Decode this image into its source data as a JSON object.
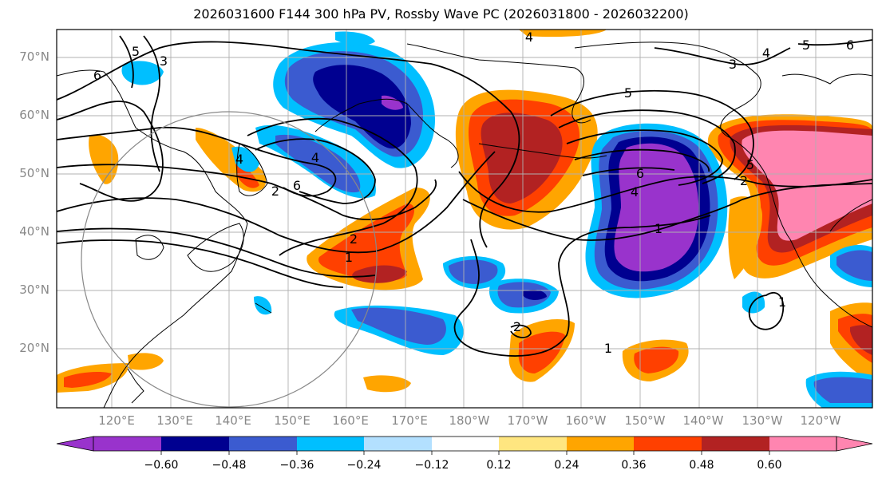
{
  "title": "2026031600 F144 300 hPa PV, Rossby Wave PC (2026031800 - 2026032200)",
  "latitude_labels": [
    "70°N",
    "60°N",
    "50°N",
    "40°N",
    "30°N",
    "20°N"
  ],
  "longitude_labels": [
    "120°E",
    "130°E",
    "140°E",
    "150°E",
    "160°E",
    "170°E",
    "180°W",
    "170°W",
    "160°W",
    "150°W",
    "140°W",
    "130°W",
    "120°W"
  ],
  "colorbar": {
    "ticks": [
      "−0.60",
      "−0.48",
      "−0.36",
      "−0.24",
      "−0.12",
      "0.12",
      "0.24",
      "0.36",
      "0.48",
      "0.60"
    ],
    "colors": [
      "#9933cc",
      "#000090",
      "#3b5bd0",
      "#00bfff",
      "#b3e0ff",
      "#ffffff",
      "#ffe680",
      "#ffa500",
      "#ff4000",
      "#b22222",
      "#ff85b0"
    ]
  },
  "contour_labels": [
    "6",
    "5",
    "3",
    "4",
    "4",
    "6",
    "5",
    "4",
    "2",
    "2",
    "1",
    "1",
    "2",
    "1",
    "3",
    "5",
    "4",
    "6",
    "5",
    "6",
    "4",
    "2",
    "1"
  ],
  "colors": {
    "pink": "#ff85b0",
    "darkred": "#b22222",
    "red": "#ff4000",
    "orange": "#ffa500",
    "yellow": "#ffe680",
    "purple": "#9933cc",
    "navy": "#000090",
    "blue": "#3b5bd0",
    "cyan": "#00bfff",
    "lightblue": "#b3e0ff"
  }
}
